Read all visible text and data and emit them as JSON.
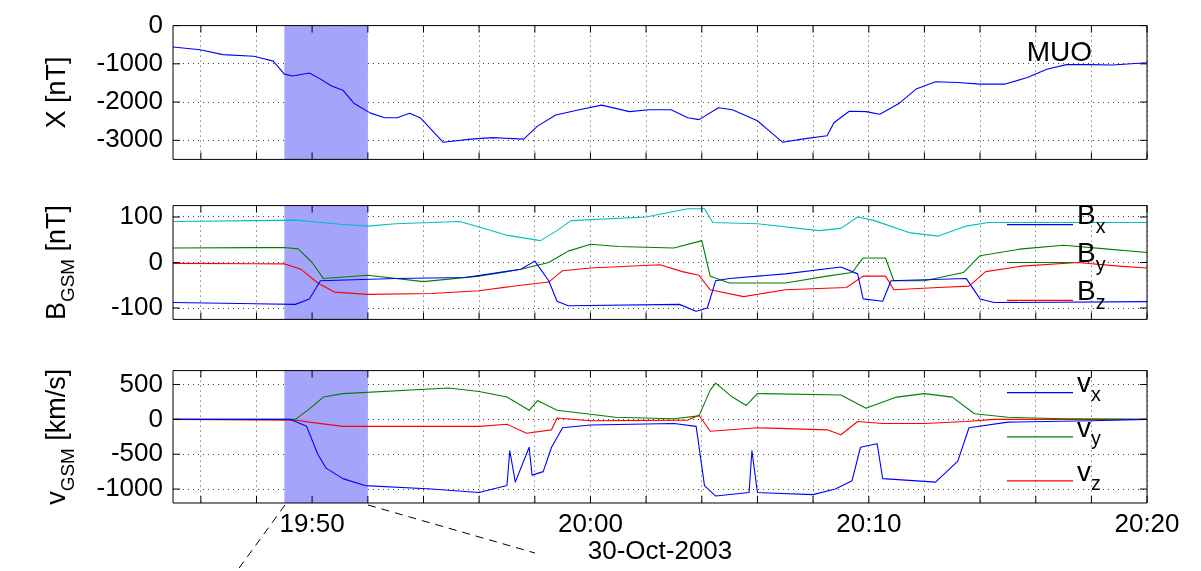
{
  "chart_data": [
    {
      "type": "line",
      "ylabel": "X [nT]",
      "annotations": [
        "MUO"
      ],
      "color": "#0000ff",
      "grid": true,
      "tick_labels": "y",
      "bands": [
        {
          "axis": "x",
          "from": 19.8167,
          "to": 19.8667,
          "color": "#a4a4fa"
        }
      ],
      "xlim": [
        19.75,
        20.3333
      ],
      "ylim": [
        -3500,
        0
      ],
      "yticks": [
        0,
        -1000,
        -2000,
        -3000
      ],
      "xticks": [
        19.7667,
        19.8,
        19.8333,
        19.8667,
        19.9,
        19.9333,
        19.9667,
        20,
        20.0333,
        20.0667,
        20.1,
        20.1333,
        20.1667,
        20.2,
        20.2333,
        20.2667,
        20.3,
        20.3333
      ],
      "x": [
        19.75,
        19.7662,
        19.78,
        19.7983,
        19.81,
        19.8167,
        19.8217,
        19.8317,
        19.8383,
        19.845,
        19.8517,
        19.8583,
        19.8683,
        19.8767,
        19.8842,
        19.8917,
        19.8983,
        19.9117,
        19.9283,
        19.9417,
        19.96,
        19.9683,
        19.9792,
        19.9933,
        20.0067,
        20.0233,
        20.035,
        20.0483,
        20.0583,
        20.065,
        20.0767,
        20.085,
        20.1,
        20.1083,
        20.115,
        20.1267,
        20.1417,
        20.1458,
        20.155,
        20.165,
        20.1733,
        20.185,
        20.195,
        20.2067,
        20.22,
        20.2333,
        20.2483,
        20.2617,
        20.2733,
        20.285,
        20.2983,
        20.3125,
        20.3333
      ],
      "values": [
        -560,
        -630,
        -760,
        -800,
        -930,
        -1270,
        -1320,
        -1240,
        -1400,
        -1580,
        -1690,
        -2030,
        -2290,
        -2410,
        -2410,
        -2290,
        -2420,
        -3050,
        -2970,
        -2930,
        -2970,
        -2630,
        -2340,
        -2200,
        -2080,
        -2250,
        -2200,
        -2200,
        -2410,
        -2460,
        -2150,
        -2200,
        -2490,
        -2800,
        -3050,
        -2970,
        -2880,
        -2540,
        -2240,
        -2250,
        -2320,
        -2030,
        -1660,
        -1470,
        -1490,
        -1530,
        -1530,
        -1360,
        -1140,
        -1020,
        -1020,
        -1030,
        -970
      ]
    },
    {
      "type": "line",
      "ylabel": "B$_{GSM}$ [nT]",
      "grid": true,
      "tick_labels": "y",
      "legend": "right",
      "bands": [
        {
          "axis": "x",
          "from": 19.8167,
          "to": 19.8667,
          "color": "#a4a4fa"
        }
      ],
      "xlim": [
        19.75,
        20.3333
      ],
      "ylim": [
        -125,
        125
      ],
      "yticks": [
        -100,
        0,
        100
      ],
      "xticks": [
        19.7667,
        19.8,
        19.8333,
        19.8667,
        19.9,
        19.9333,
        19.9667,
        20,
        20.0333,
        20.0667,
        20.1,
        20.1333,
        20.1667,
        20.2,
        20.2333,
        20.2667,
        20.3,
        20.3333
      ],
      "series": [
        {
          "name": "B$_{x}$",
          "color": "#0000ff",
          "x": [
            19.75,
            19.8233,
            19.8317,
            19.8383,
            19.8833,
            19.925,
            19.9583,
            19.9667,
            19.975,
            19.98,
            19.9867,
            20.0533,
            20.0633,
            20.07,
            20.075,
            20.0833,
            20.1167,
            20.15,
            20.16,
            20.1633,
            20.175,
            20.18,
            20.225,
            20.2333,
            20.2417,
            20.3333
          ],
          "values": [
            -88,
            -92,
            -80,
            -40,
            -35,
            -33,
            -15,
            3,
            -40,
            -85,
            -95,
            -92,
            -107,
            -100,
            -40,
            -35,
            -25,
            -10,
            -25,
            -80,
            -85,
            -40,
            -35,
            -80,
            -88,
            -86
          ]
        },
        {
          "name": "B$_{y}$",
          "color": "#007f00",
          "x": [
            19.75,
            19.8167,
            19.825,
            19.8333,
            19.84,
            19.8667,
            19.9,
            19.9333,
            19.9583,
            19.975,
            19.9867,
            20,
            20.0167,
            20.05,
            20.0667,
            20.0717,
            20.0833,
            20.1167,
            20.1417,
            20.1567,
            20.1633,
            20.1767,
            20.1817,
            20.2,
            20.2233,
            20.2333,
            20.2583,
            20.2833,
            20.3083,
            20.3333
          ],
          "values": [
            32,
            33,
            30,
            0,
            -35,
            -28,
            -42,
            -30,
            -15,
            0,
            25,
            40,
            35,
            32,
            48,
            -30,
            -45,
            -45,
            -30,
            -22,
            10,
            10,
            -40,
            -40,
            -22,
            15,
            30,
            38,
            30,
            22
          ]
        },
        {
          "name": "B$_{z}$",
          "color": "#ff0000",
          "x": [
            19.75,
            19.8167,
            19.8267,
            19.8367,
            19.8467,
            19.8667,
            19.905,
            19.9333,
            19.9583,
            19.975,
            19.9833,
            20,
            20.0417,
            20.055,
            20.065,
            20.0717,
            20.0917,
            20.1167,
            20.1533,
            20.1633,
            20.1767,
            20.1817,
            20.2083,
            20.2267,
            20.2367,
            20.2583,
            20.2917,
            20.3167,
            20.3333
          ],
          "values": [
            -2,
            -3,
            -15,
            -45,
            -65,
            -70,
            -68,
            -62,
            -50,
            -43,
            -18,
            -12,
            -5,
            -20,
            -28,
            -60,
            -75,
            -60,
            -55,
            -30,
            -30,
            -60,
            -55,
            -52,
            -20,
            -8,
            0,
            -8,
            -12
          ]
        },
        {
          "color": "#00bfbf",
          "x": [
            19.75,
            19.8233,
            19.85,
            19.8667,
            19.8833,
            19.9217,
            19.9333,
            19.95,
            19.97,
            19.98,
            19.9883,
            20.0333,
            20.0583,
            20.0683,
            20.0733,
            20.1,
            20.1367,
            20.15,
            20.16,
            20.17,
            20.1917,
            20.2083,
            20.225,
            20.2383,
            20.3333
          ],
          "values": [
            90,
            93,
            84,
            80,
            85,
            90,
            78,
            60,
            48,
            70,
            92,
            100,
            118,
            118,
            88,
            85,
            70,
            75,
            100,
            92,
            65,
            58,
            80,
            88,
            88
          ]
        }
      ]
    },
    {
      "type": "line",
      "ylabel": "v$_{GSM}$ [km/s]",
      "xlabel": "30-Oct-2003",
      "grid": true,
      "legend": "right",
      "bands": [
        {
          "axis": "x",
          "from": 19.8167,
          "to": 19.8667,
          "color": "#a4a4fa"
        }
      ],
      "xlim": [
        19.75,
        20.3333
      ],
      "ylim": [
        -1200,
        700
      ],
      "yticks": [
        -1000,
        -500,
        0,
        500
      ],
      "xticks": [
        {
          "value": 19.7667,
          "label": null
        },
        {
          "value": 19.8,
          "label": null
        },
        {
          "value": 19.8333,
          "label": "19:50"
        },
        {
          "value": 19.8667,
          "label": null
        },
        {
          "value": 19.9,
          "label": null
        },
        {
          "value": 19.9333,
          "label": null
        },
        {
          "value": 19.9667,
          "label": null
        },
        {
          "value": 20,
          "label": "20:00"
        },
        {
          "value": 20.0333,
          "label": null
        },
        {
          "value": 20.0667,
          "label": null
        },
        {
          "value": 20.1,
          "label": null
        },
        {
          "value": 20.1333,
          "label": null
        },
        {
          "value": 20.1667,
          "label": "20:10"
        },
        {
          "value": 20.2,
          "label": null
        },
        {
          "value": 20.2333,
          "label": null
        },
        {
          "value": 20.2667,
          "label": null
        },
        {
          "value": 20.3,
          "label": null
        },
        {
          "value": 20.3333,
          "label": "20:20"
        }
      ],
      "series": [
        {
          "name": "v$_{x}$",
          "color": "#0000ff",
          "x": [
            19.75,
            19.82,
            19.8233,
            19.83,
            19.8367,
            19.8417,
            19.8517,
            19.865,
            19.905,
            19.9333,
            19.95,
            19.9517,
            19.955,
            19.9633,
            19.965,
            19.9717,
            19.9767,
            19.9833,
            20,
            20.05,
            20.0633,
            20.0683,
            20.075,
            20.095,
            20.0967,
            20.1,
            20.1333,
            20.1467,
            20.1567,
            20.1617,
            20.1717,
            20.175,
            20.2067,
            20.22,
            20.2267,
            20.25,
            20.3,
            20.3333
          ],
          "values": [
            0,
            0,
            -30,
            -100,
            -500,
            -700,
            -850,
            -950,
            -1000,
            -1050,
            -950,
            -450,
            -900,
            -400,
            -800,
            -750,
            -400,
            -120,
            -80,
            -60,
            -100,
            -950,
            -1100,
            -1050,
            -450,
            -1050,
            -1080,
            -1000,
            -880,
            -400,
            -350,
            -850,
            -900,
            -600,
            -120,
            -40,
            -20,
            0
          ]
        },
        {
          "name": "v$_{y}$",
          "color": "#007f00",
          "x": [
            19.75,
            19.8233,
            19.8317,
            19.84,
            19.8517,
            19.915,
            19.9333,
            19.95,
            19.9633,
            19.9683,
            19.98,
            20.015,
            20.05,
            20.065,
            20.0717,
            20.075,
            20.085,
            20.0933,
            20.1,
            20.15,
            20.165,
            20.1833,
            20.2,
            20.2167,
            20.23,
            20.25,
            20.2833,
            20.3333
          ],
          "values": [
            0,
            0,
            150,
            320,
            370,
            450,
            400,
            320,
            130,
            270,
            130,
            30,
            10,
            50,
            420,
            520,
            320,
            200,
            370,
            350,
            160,
            320,
            370,
            320,
            80,
            30,
            10,
            0
          ]
        },
        {
          "name": "v$_{z}$",
          "color": "#ff0000",
          "x": [
            19.75,
            19.8233,
            19.8317,
            19.8517,
            19.9333,
            19.95,
            19.9617,
            19.9767,
            19.98,
            20,
            20.0583,
            20.065,
            20.0717,
            20.1,
            20.1417,
            20.15,
            20.16,
            20.175,
            20.2,
            20.225,
            20.2417,
            20.3333
          ],
          "values": [
            0,
            -10,
            -40,
            -100,
            -100,
            -70,
            -200,
            -150,
            20,
            -20,
            -10,
            60,
            -170,
            -120,
            -150,
            -220,
            -30,
            -60,
            -60,
            -30,
            0,
            0
          ]
        }
      ]
    }
  ]
}
